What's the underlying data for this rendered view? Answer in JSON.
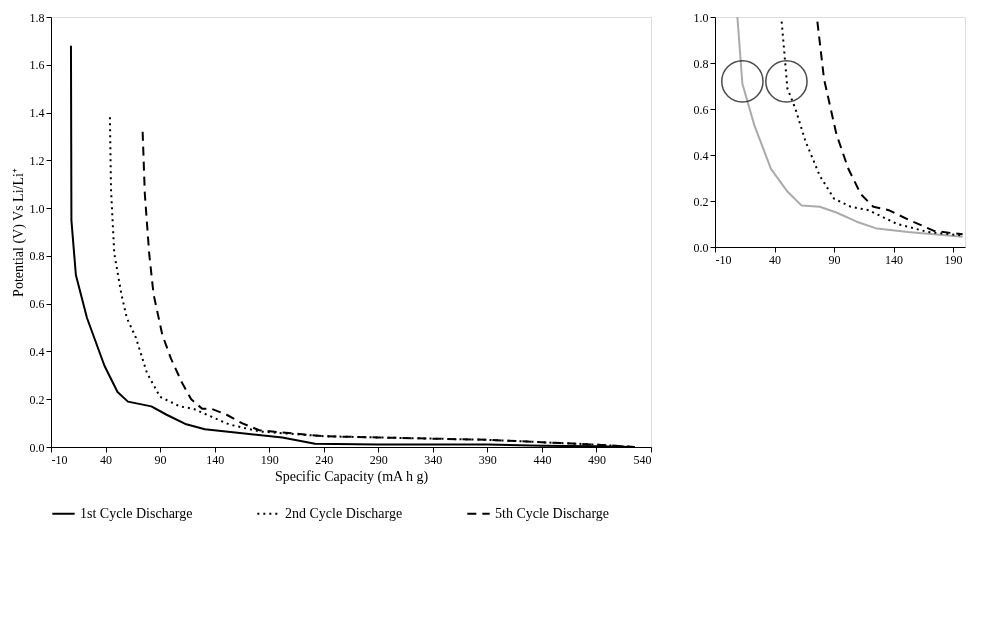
{
  "chart_data": [
    {
      "type": "line",
      "xlabel": "Specific Capacity (mA h g)",
      "ylabel": "Potential (V) Vs Li/Li⁺",
      "xlim": [
        -10,
        540
      ],
      "ylim": [
        0,
        1.8
      ],
      "xticks": [
        -10,
        40,
        90,
        140,
        190,
        240,
        290,
        340,
        390,
        440,
        490,
        540
      ],
      "yticks": [
        {
          "value": 0,
          "label": "0.0"
        },
        {
          "value": 0.2,
          "label": "0.2"
        },
        {
          "value": 0.4,
          "label": "0.4"
        },
        {
          "value": 0.6,
          "label": "0.6"
        },
        {
          "value": 0.8,
          "label": "0.8"
        },
        {
          "value": 1,
          "label": "1.0"
        },
        {
          "value": 1.2,
          "label": "1.2"
        },
        {
          "value": 1.4,
          "label": "1.4"
        },
        {
          "value": 1.6,
          "label": "1.6"
        },
        {
          "value": 1.8,
          "label": "1.8"
        }
      ],
      "grid": false,
      "legend": "bottom",
      "series": [
        {
          "name": "1st Cycle Discharge",
          "color": "#000000",
          "line_style": "solid",
          "x": [
            8.3,
            8.7,
            12.8,
            23,
            39,
            51,
            60.5,
            82,
            96,
            114,
            131,
            161,
            202,
            232,
            290,
            340,
            390,
            440,
            490,
            525
          ],
          "values": [
            1.68,
            0.95,
            0.72,
            0.54,
            0.34,
            0.23,
            0.19,
            0.17,
            0.135,
            0.095,
            0.074,
            0.06,
            0.04,
            0.014,
            0.01,
            0.01,
            0.01,
            0.005,
            0.003,
            0.0
          ]
        },
        {
          "name": "2nd Cycle Discharge",
          "color": "#000000",
          "line_style": "dotted",
          "x": [
            44,
            45,
            48,
            54.5,
            59.5,
            67.6,
            78,
            90,
            108,
            120.5,
            133,
            153,
            181,
            240,
            290,
            340,
            390,
            440,
            490,
            525
          ],
          "values": [
            1.38,
            1.08,
            0.81,
            0.64,
            0.54,
            0.46,
            0.31,
            0.21,
            0.17,
            0.16,
            0.135,
            0.095,
            0.065,
            0.045,
            0.04,
            0.035,
            0.03,
            0.02,
            0.01,
            0.0
          ]
        },
        {
          "name": "5th Cycle Discharge",
          "color": "#000000",
          "line_style": "dashed",
          "x": [
            74,
            76,
            80,
            84,
            92,
            100,
            110,
            118.5,
            128.6,
            137,
            151,
            165,
            181,
            240,
            290,
            340,
            390,
            440,
            490,
            525
          ],
          "values": [
            1.32,
            1.06,
            0.81,
            0.64,
            0.47,
            0.37,
            0.27,
            0.2,
            0.16,
            0.16,
            0.135,
            0.1,
            0.07,
            0.045,
            0.04,
            0.035,
            0.03,
            0.02,
            0.01,
            0.0
          ]
        }
      ]
    },
    {
      "type": "line",
      "xlim": [
        -10,
        200
      ],
      "ylim": [
        0,
        1
      ],
      "xticks": [
        -10,
        40,
        90,
        140,
        190
      ],
      "yticks": [
        {
          "value": 0,
          "label": "0.0"
        },
        {
          "value": 0.2,
          "label": "0.2"
        },
        {
          "value": 0.4,
          "label": "0.4"
        },
        {
          "value": 0.6,
          "label": "0.6"
        },
        {
          "value": 0.8,
          "label": "0.8"
        },
        {
          "value": 1,
          "label": "1.0"
        }
      ],
      "grid": false,
      "series": [
        {
          "color": "#aaaaaa",
          "line_style": "solid",
          "x": [
            8.8,
            13,
            23,
            37,
            51,
            62.8,
            78,
            92,
            109,
            126,
            152,
            198
          ],
          "values": [
            1.0,
            0.71,
            0.53,
            0.34,
            0.24,
            0.18,
            0.175,
            0.15,
            0.11,
            0.08,
            0.065,
            0.045
          ]
        },
        {
          "color": "#000000",
          "line_style": "dotted",
          "x": [
            46,
            50.8,
            57.6,
            66,
            78,
            90,
            104,
            119,
            143,
            169,
            198
          ],
          "values": [
            0.98,
            0.69,
            0.6,
            0.46,
            0.31,
            0.21,
            0.175,
            0.16,
            0.1,
            0.065,
            0.05
          ]
        },
        {
          "color": "#000000",
          "line_style": "dashed",
          "x": [
            76,
            81.6,
            92,
            102,
            112.5,
            123,
            136,
            152,
            174,
            198
          ],
          "values": [
            0.98,
            0.73,
            0.49,
            0.34,
            0.23,
            0.175,
            0.16,
            0.12,
            0.07,
            0.055
          ]
        },
        {
          "type": "scatter",
          "marker": "circle",
          "color": "#000000",
          "x": [
            13,
            50
          ],
          "values": [
            0.72,
            0.72
          ]
        }
      ]
    }
  ]
}
